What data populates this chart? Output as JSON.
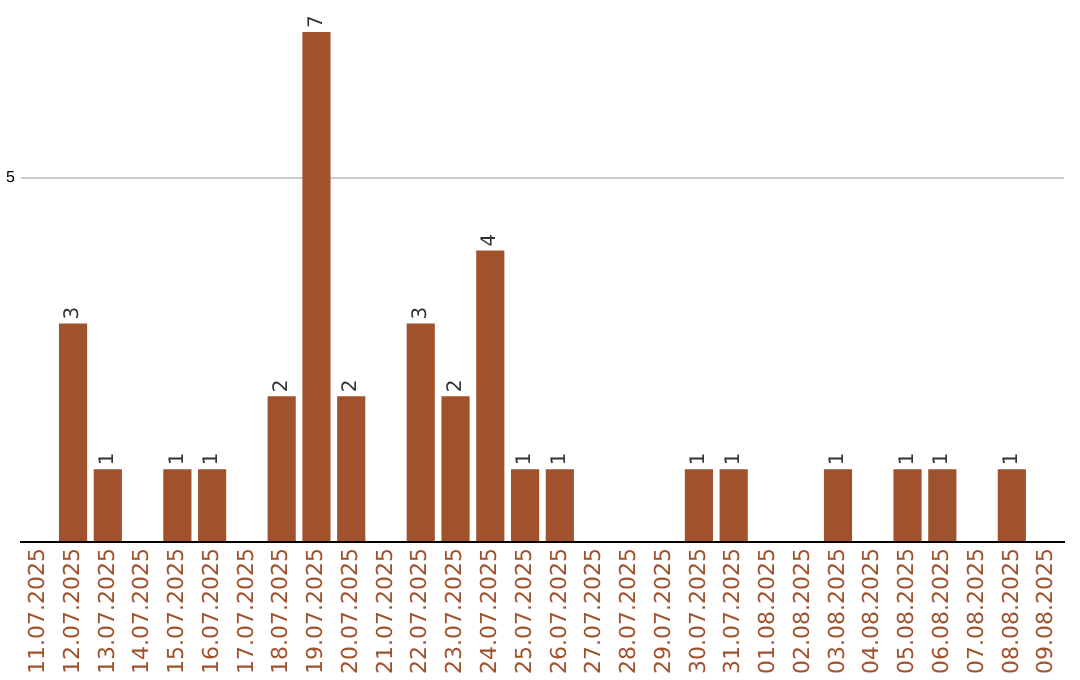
{
  "chart_data": {
    "type": "bar",
    "categories": [
      "11.07.2025",
      "12.07.2025",
      "13.07.2025",
      "14.07.2025",
      "15.07.2025",
      "16.07.2025",
      "17.07.2025",
      "18.07.2025",
      "19.07.2025",
      "20.07.2025",
      "21.07.2025",
      "22.07.2025",
      "23.07.2025",
      "24.07.2025",
      "25.07.2025",
      "26.07.2025",
      "27.07.2025",
      "28.07.2025",
      "29.07.2025",
      "30.07.2025",
      "31.07.2025",
      "01.08.2025",
      "02.08.2025",
      "03.08.2025",
      "04.08.2025",
      "05.08.2025",
      "06.08.2025",
      "07.08.2025",
      "08.08.2025",
      "09.08.2025"
    ],
    "values": [
      0,
      3,
      1,
      0,
      1,
      1,
      0,
      2,
      7,
      2,
      0,
      3,
      2,
      4,
      1,
      1,
      0,
      0,
      0,
      1,
      1,
      0,
      0,
      1,
      0,
      1,
      1,
      0,
      1,
      0
    ],
    "value_labels": [
      null,
      "3",
      "1",
      null,
      "1",
      "1",
      null,
      "2",
      "7",
      "2",
      null,
      "3",
      "2",
      "4",
      "1",
      "1",
      null,
      null,
      null,
      "1",
      "1",
      null,
      null,
      "1",
      null,
      "1",
      "1",
      null,
      "1",
      null
    ],
    "color": "#a0522d",
    "ylim": [
      0,
      7
    ],
    "yticks": [
      {
        "value": 0,
        "label": null
      },
      5
    ],
    "grid": "y",
    "legend": false
  }
}
